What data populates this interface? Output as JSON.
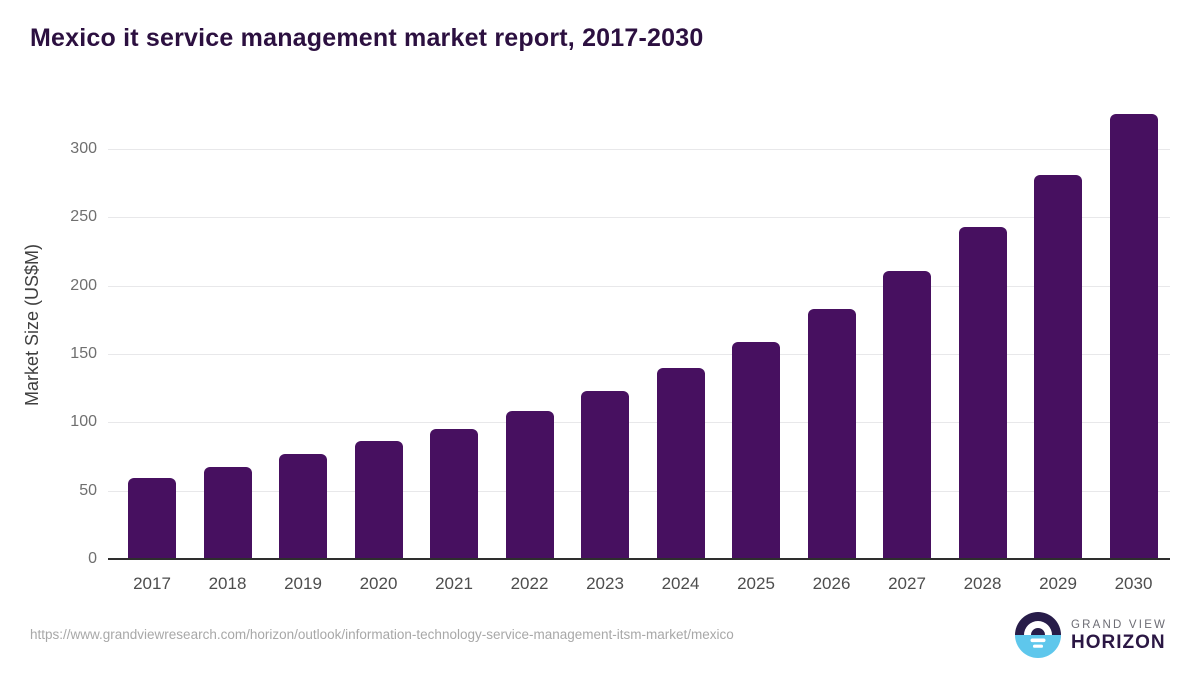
{
  "header": {
    "title": "Mexico it service management market report, 2017-2030"
  },
  "chart_data": {
    "type": "bar",
    "title": "Mexico it service management market report, 2017-2030",
    "categories": [
      "2017",
      "2018",
      "2019",
      "2020",
      "2021",
      "2022",
      "2023",
      "2024",
      "2025",
      "2026",
      "2027",
      "2028",
      "2029",
      "2030"
    ],
    "values": [
      59,
      67,
      77,
      86,
      95,
      108,
      123,
      140,
      159,
      183,
      211,
      243,
      281,
      326
    ],
    "xlabel": "",
    "ylabel": "Market Size (US$M)",
    "yticks": [
      0,
      50,
      100,
      150,
      200,
      250,
      300
    ],
    "ylim": [
      0,
      340
    ],
    "grid": "horizontal-only",
    "legend_position": "none",
    "bar_color": "#471060"
  },
  "footer": {
    "source_url": "https://www.grandviewresearch.com/horizon/outlook/information-technology-service-management-itsm-market/mexico",
    "logo": {
      "line1": "GRAND VIEW",
      "line2": "HORIZON"
    }
  },
  "colors": {
    "title_text": "#2c1040",
    "bar": "#471060",
    "gridline": "#e8e8ea",
    "axis_line": "#2e2e2e",
    "tick_text": "#6f6f6f",
    "year_text": "#4d4d4d",
    "url_text": "#a8a8a8",
    "logo_dark": "#271c49",
    "logo_blue": "#5ec7ec"
  }
}
